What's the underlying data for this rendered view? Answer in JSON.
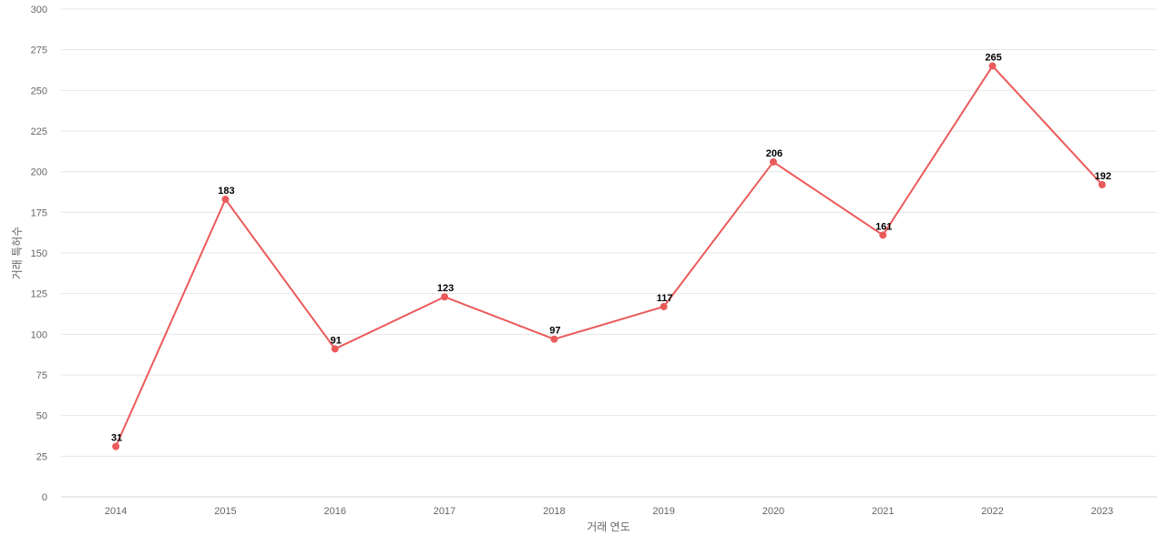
{
  "chart_data": {
    "type": "line",
    "title": "",
    "xlabel": "거래 연도",
    "ylabel": "거래 특허수",
    "x": [
      "2014",
      "2015",
      "2016",
      "2017",
      "2018",
      "2019",
      "2020",
      "2021",
      "2022",
      "2023"
    ],
    "series": [
      {
        "values": [
          31,
          183,
          91,
          123,
          97,
          117,
          206,
          161,
          265,
          192
        ],
        "color": "#eb5a5a"
      }
    ],
    "ylim": [
      0,
      300
    ],
    "yticks": [
      0,
      25,
      50,
      75,
      100,
      125,
      150,
      175,
      200,
      225,
      250,
      275,
      300
    ],
    "grid": true,
    "legend": "none",
    "data_labels": true
  }
}
